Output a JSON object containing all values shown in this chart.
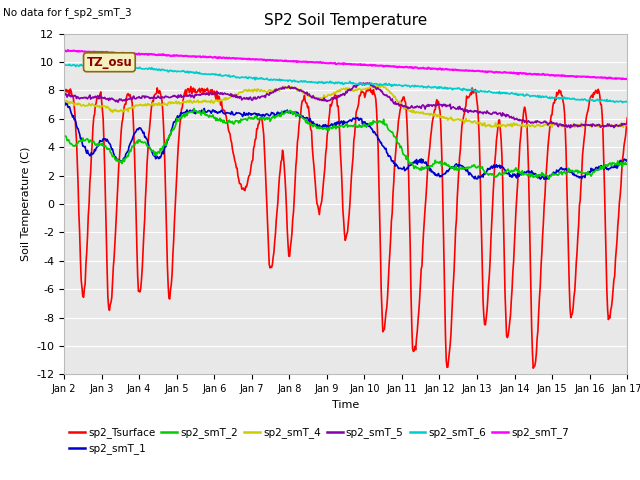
{
  "title": "SP2 Soil Temperature",
  "no_data_text": "No data for f_sp2_smT_3",
  "ylabel": "Soil Temperature (C)",
  "xlabel": "Time",
  "ylim": [
    -12,
    12
  ],
  "yticks": [
    -12,
    -10,
    -8,
    -6,
    -4,
    -2,
    0,
    2,
    4,
    6,
    8,
    10,
    12
  ],
  "xtick_labels": [
    "Jan 2",
    "Jan 3",
    "Jan 4",
    "Jan 5",
    "Jan 6",
    "Jan 7",
    "Jan 8",
    "Jan 9",
    "Jan 10",
    "Jan 11",
    "Jan 12",
    "Jan 13",
    "Jan 14",
    "Jan 15",
    "Jan 16",
    "Jan 17"
  ],
  "tz_osu_label": "TZ_osu",
  "legend_entries": [
    "sp2_Tsurface",
    "sp2_smT_1",
    "sp2_smT_2",
    "sp2_smT_4",
    "sp2_smT_5",
    "sp2_smT_6",
    "sp2_smT_7"
  ],
  "line_colors": [
    "#ff0000",
    "#0000cc",
    "#00cc00",
    "#cccc00",
    "#8800aa",
    "#00cccc",
    "#ff00ff"
  ],
  "line_widths": [
    1.2,
    1.2,
    1.2,
    1.2,
    1.2,
    1.2,
    1.5
  ],
  "plot_bg_color": "#e8e8e8",
  "fig_bg_color": "#ffffff",
  "grid_color": "#ffffff",
  "n_points": 720
}
